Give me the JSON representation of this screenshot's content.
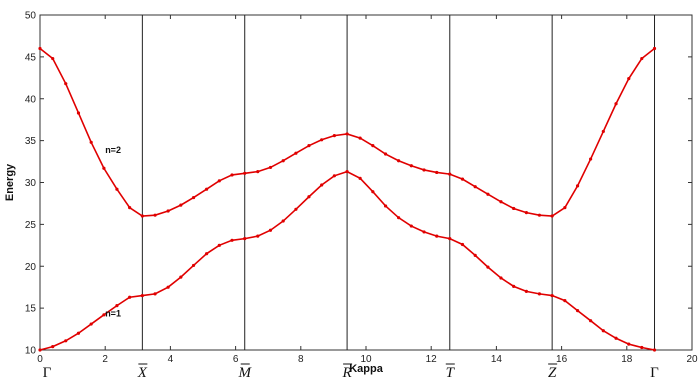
{
  "chart_data": {
    "type": "line",
    "title": "",
    "xlabel": "Kappa",
    "ylabel": "Energy",
    "xlim": [
      0,
      20
    ],
    "ylim": [
      10,
      50
    ],
    "xticks": [
      0,
      2,
      4,
      6,
      8,
      10,
      12,
      14,
      16,
      18,
      20
    ],
    "yticks": [
      10,
      15,
      20,
      25,
      30,
      35,
      40,
      45,
      50
    ],
    "grid": false,
    "vlines": [
      3.14,
      6.28,
      9.42,
      12.57,
      15.71,
      18.85
    ],
    "symmetry_points": [
      {
        "label": "Γ",
        "x": 0
      },
      {
        "label": "X",
        "x": 3.14
      },
      {
        "label": "M",
        "x": 6.28
      },
      {
        "label": "R",
        "x": 9.42
      },
      {
        "label": "T",
        "x": 12.57
      },
      {
        "label": "Z",
        "x": 15.71
      },
      {
        "label": "Γ",
        "x": 18.85
      }
    ],
    "annotations": [
      {
        "text": "n=2",
        "x": 2.0,
        "y": 33.5
      },
      {
        "text": "n=1",
        "x": 2.0,
        "y": 14.0
      }
    ],
    "series_color": "#e00000",
    "series": [
      {
        "x": [
          0.0,
          0.39,
          0.79,
          1.18,
          1.57,
          1.96,
          2.36,
          2.75,
          3.14,
          3.53,
          3.93,
          4.32,
          4.71,
          5.11,
          5.5,
          5.89,
          6.28,
          6.68,
          7.07,
          7.46,
          7.85,
          8.25,
          8.64,
          9.03,
          9.42,
          9.82,
          10.21,
          10.6,
          11.0,
          11.39,
          11.78,
          12.17,
          12.57,
          12.96,
          13.35,
          13.74,
          14.14,
          14.53,
          14.92,
          15.32,
          15.71,
          16.1,
          16.49,
          16.89,
          17.28,
          17.67,
          18.06,
          18.46,
          18.85
        ],
        "values": [
          10.0,
          10.4,
          11.1,
          12.0,
          13.1,
          14.2,
          15.3,
          16.3,
          16.5,
          16.7,
          17.5,
          18.7,
          20.1,
          21.5,
          22.5,
          23.1,
          23.3,
          23.6,
          24.3,
          25.4,
          26.8,
          28.3,
          29.7,
          30.8,
          31.3,
          30.5,
          28.9,
          27.2,
          25.8,
          24.8,
          24.1,
          23.6,
          23.3,
          22.6,
          21.3,
          19.9,
          18.6,
          17.6,
          17.0,
          16.7,
          16.5,
          15.9,
          14.7,
          13.5,
          12.3,
          11.4,
          10.7,
          10.3,
          10.0
        ]
      },
      {
        "x": [
          0.0,
          0.39,
          0.79,
          1.18,
          1.57,
          1.96,
          2.36,
          2.75,
          3.14,
          3.53,
          3.93,
          4.32,
          4.71,
          5.11,
          5.5,
          5.89,
          6.28,
          6.68,
          7.07,
          7.46,
          7.85,
          8.25,
          8.64,
          9.03,
          9.42,
          9.82,
          10.21,
          10.6,
          11.0,
          11.39,
          11.78,
          12.17,
          12.57,
          12.96,
          13.35,
          13.74,
          14.14,
          14.53,
          14.92,
          15.32,
          15.71,
          16.1,
          16.49,
          16.89,
          17.28,
          17.67,
          18.06,
          18.46,
          18.85
        ],
        "values": [
          46.0,
          44.8,
          41.8,
          38.3,
          34.8,
          31.7,
          29.2,
          27.0,
          26.0,
          26.1,
          26.6,
          27.3,
          28.2,
          29.2,
          30.2,
          30.9,
          31.1,
          31.3,
          31.8,
          32.6,
          33.5,
          34.4,
          35.1,
          35.6,
          35.8,
          35.3,
          34.4,
          33.4,
          32.6,
          32.0,
          31.5,
          31.2,
          31.0,
          30.4,
          29.5,
          28.6,
          27.7,
          26.9,
          26.4,
          26.1,
          26.0,
          27.0,
          29.6,
          32.8,
          36.1,
          39.4,
          42.4,
          44.8,
          46.0
        ]
      }
    ]
  }
}
